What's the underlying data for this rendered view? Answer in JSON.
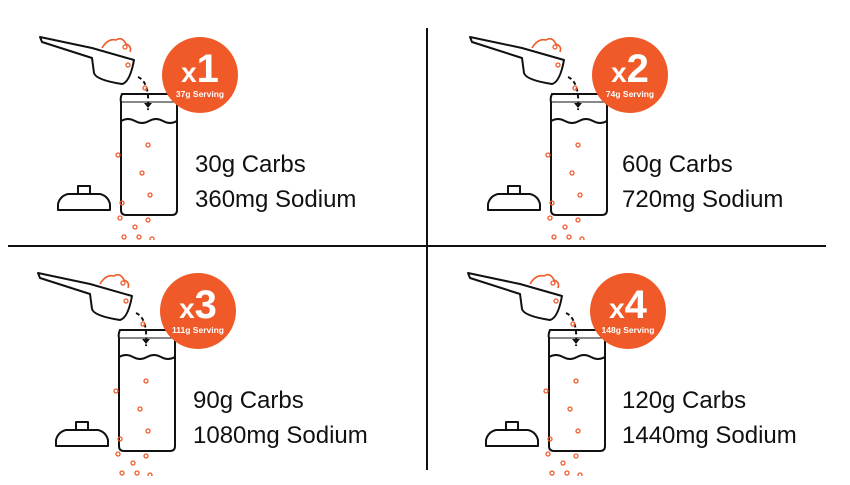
{
  "accent_color": "#f05a28",
  "quadrants": [
    {
      "multiplier_prefix": "x",
      "multiplier": "1",
      "serving": "37g Serving",
      "carbs": "30g Carbs",
      "sodium": "360mg Sodium"
    },
    {
      "multiplier_prefix": "x",
      "multiplier": "2",
      "serving": "74g Serving",
      "carbs": "60g Carbs",
      "sodium": "720mg Sodium"
    },
    {
      "multiplier_prefix": "x",
      "multiplier": "3",
      "serving": "111g Serving",
      "carbs": "90g Carbs",
      "sodium": "1080mg Sodium"
    },
    {
      "multiplier_prefix": "x",
      "multiplier": "4",
      "serving": "148g Serving",
      "carbs": "120g Carbs",
      "sodium": "1440mg Sodium"
    }
  ],
  "icons": [
    "scoop-icon",
    "bottle-icon",
    "bottle-lid-icon",
    "pour-arrow-icon"
  ]
}
